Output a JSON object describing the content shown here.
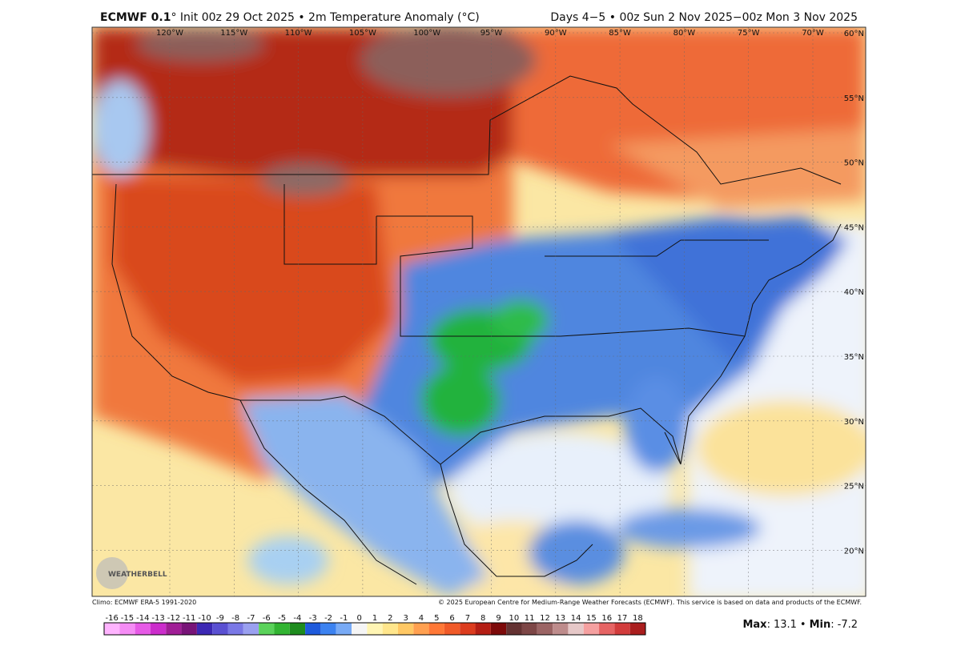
{
  "header": {
    "model": "ECMWF 0.1",
    "title": "° Init 00z 29 Oct 2025 • 2m Temperature Anomaly (°C)",
    "valid": "Days 4−5 • 00z Sun 2 Nov 2025−00z Mon 3 Nov 2025"
  },
  "map": {
    "lon_labels": [
      "120°W",
      "115°W",
      "110°W",
      "105°W",
      "100°W",
      "95°W",
      "90°W",
      "85°W",
      "80°W",
      "75°W",
      "70°W"
    ],
    "lat_labels": [
      "60°N",
      "55°N",
      "50°N",
      "45°N",
      "40°N",
      "35°N",
      "30°N",
      "25°N",
      "20°N"
    ],
    "logo": "WEATHERBELL"
  },
  "footer": {
    "left": "Climo: ECMWF ERA-5 1991-2020",
    "right": "© 2025 European Centre for Medium-Range Weather Forecasts (ECMWF). This service is based on data and products of the ECMWF."
  },
  "colorbar": {
    "ticks": [
      -16,
      -15,
      -14,
      -13,
      -12,
      -11,
      -10,
      -9,
      -8,
      -7,
      -6,
      -5,
      -4,
      -3,
      -2,
      -1,
      0,
      1,
      2,
      3,
      4,
      5,
      6,
      7,
      8,
      9,
      10,
      11,
      12,
      13,
      14,
      15,
      16,
      17,
      18
    ],
    "colors": [
      "#ffb4ff",
      "#f58cf5",
      "#e65ae6",
      "#cc2dcc",
      "#a01e96",
      "#781478",
      "#3c28b4",
      "#5a50d2",
      "#7a78e6",
      "#9aa0f0",
      "#5ad25a",
      "#32b432",
      "#1e8c1e",
      "#1e5adc",
      "#3c82f0",
      "#78aaf5",
      "#f5f5f5",
      "#fff5b4",
      "#ffe68c",
      "#ffc864",
      "#ffa050",
      "#ff7837",
      "#f05a28",
      "#dc3c1e",
      "#b41e14",
      "#7d0a0a",
      "#643232",
      "#7d4646",
      "#9b6464",
      "#be8c8c",
      "#e6c8c8",
      "#f5a0a0",
      "#e66464",
      "#d23c3c",
      "#aa1e1e"
    ]
  },
  "stats": {
    "max_label": "Max",
    "max": 13.1,
    "separator": "•",
    "min_label": "Min",
    "min": -7.2
  }
}
